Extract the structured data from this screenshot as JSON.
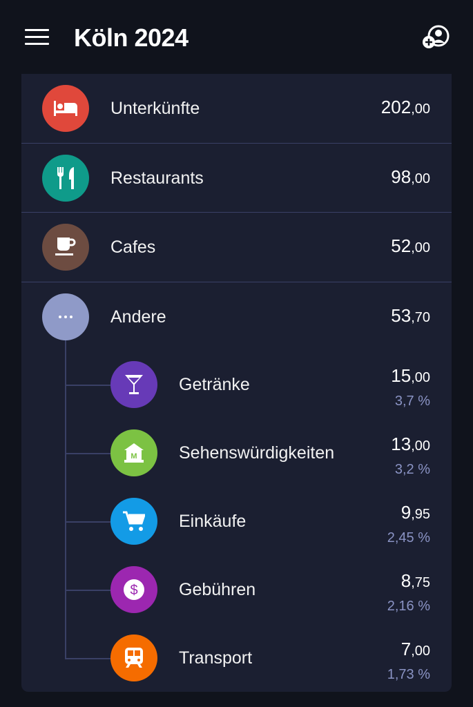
{
  "header": {
    "title": "Köln 2024",
    "menu_icon": "hamburger-icon",
    "action_icon": "add-user-icon"
  },
  "categories": [
    {
      "label": "Unterkünfte",
      "int": "202",
      "dec": ",00",
      "icon": "bed-icon",
      "color": "#e0483b"
    },
    {
      "label": "Restaurants",
      "int": "98",
      "dec": ",00",
      "icon": "cutlery-icon",
      "color": "#0f9b8a"
    },
    {
      "label": "Cafes",
      "int": "52",
      "dec": ",00",
      "icon": "coffee-cup-icon",
      "color": "#6d4c41"
    },
    {
      "label": "Andere",
      "int": "53",
      "dec": ",70",
      "icon": "more-dots-icon",
      "color": "#8f9ac8"
    }
  ],
  "subcategories": [
    {
      "label": "Getränke",
      "int": "15",
      "dec": ",00",
      "pct": "3,7 %",
      "icon": "cocktail-icon",
      "color": "#673ab7"
    },
    {
      "label": "Sehenswürdigkeiten",
      "int": "13",
      "dec": ",00",
      "pct": "3,2 %",
      "icon": "museum-icon",
      "color": "#7cc243"
    },
    {
      "label": "Einkäufe",
      "int": "9",
      "dec": ",95",
      "pct": "2,45 %",
      "icon": "shopping-cart-icon",
      "color": "#139be6"
    },
    {
      "label": "Gebühren",
      "int": "8",
      "dec": ",75",
      "pct": "2,16 %",
      "icon": "dollar-icon",
      "color": "#9c27b0"
    },
    {
      "label": "Transport",
      "int": "7",
      "dec": ",00",
      "pct": "1,73 %",
      "icon": "bus-icon",
      "color": "#f56c00"
    }
  ]
}
